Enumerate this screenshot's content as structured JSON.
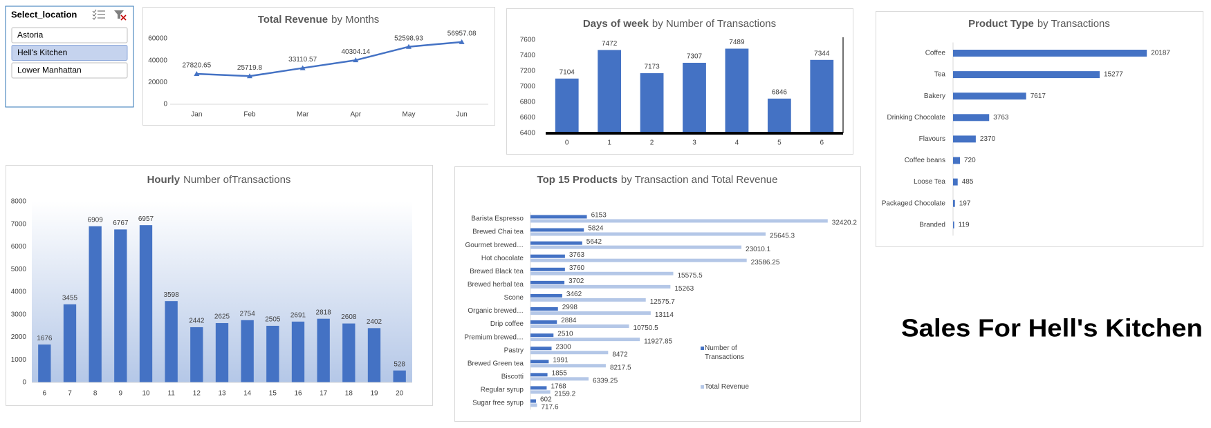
{
  "slicer": {
    "header": "Select_location",
    "items": [
      "Astoria",
      "Hell's Kitchen",
      "Lower Manhattan"
    ],
    "selected": 1
  },
  "dashboard_title": "Sales For Hell's Kitchen",
  "chart_data": [
    {
      "type": "line",
      "title": {
        "bold": "Total Revenue",
        "rest": "by Months"
      },
      "categories": [
        "Jan",
        "Feb",
        "Mar",
        "Apr",
        "May",
        "Jun"
      ],
      "values": [
        27820.65,
        25719.8,
        33110.57,
        40304.14,
        52598.93,
        56957.08
      ],
      "color": "#4472c4",
      "ylim": [
        0,
        60000
      ],
      "yticks": [
        0,
        20000,
        40000,
        60000
      ],
      "grid": false
    },
    {
      "type": "bar",
      "title": {
        "bold": "Days of week",
        "rest": "by Number of Transactions"
      },
      "categories": [
        "0",
        "1",
        "2",
        "3",
        "4",
        "5",
        "6"
      ],
      "values": [
        7104,
        7472,
        7173,
        7307,
        7489,
        6846,
        7344
      ],
      "color": "#4472c4",
      "ylim": [
        6400,
        7600
      ],
      "yticks": [
        6400,
        6600,
        6800,
        7000,
        7200,
        7400,
        7600
      ],
      "grid": false
    },
    {
      "type": "bar",
      "orientation": "horizontal",
      "title": {
        "bold": "Product Type",
        "rest": "by Transactions"
      },
      "categories": [
        "Coffee",
        "Tea",
        "Bakery",
        "Drinking Chocolate",
        "Flavours",
        "Coffee beans",
        "Loose Tea",
        "Packaged Chocolate",
        "Branded"
      ],
      "values": [
        20187,
        15277,
        7617,
        3763,
        2370,
        720,
        485,
        197,
        119
      ],
      "color": "#4472c4",
      "xlim": [
        0,
        25000
      ],
      "grid": false
    },
    {
      "type": "bar",
      "title": {
        "bold": "Hourly",
        "rest": "Number ofTransactions"
      },
      "categories": [
        "6",
        "7",
        "8",
        "9",
        "10",
        "11",
        "12",
        "13",
        "14",
        "15",
        "16",
        "17",
        "18",
        "19",
        "20"
      ],
      "values": [
        1676,
        3455,
        6909,
        6767,
        6957,
        3598,
        2442,
        2625,
        2754,
        2505,
        2691,
        2818,
        2608,
        2402,
        528
      ],
      "color": "#4472c4",
      "ylim": [
        0,
        8000
      ],
      "yticks": [
        0,
        1000,
        2000,
        3000,
        4000,
        5000,
        6000,
        7000,
        8000
      ],
      "grid": false
    },
    {
      "type": "bar",
      "orientation": "horizontal",
      "title": {
        "bold": "Top 15 Products",
        "rest": "by Transaction and Total Revenue"
      },
      "categories": [
        "Barista Espresso",
        "Brewed Chai tea",
        "Gourmet brewed…",
        "Hot chocolate",
        "Brewed Black tea",
        "Brewed herbal tea",
        "Scone",
        "Organic brewed…",
        "Drip coffee",
        "Premium brewed…",
        "Pastry",
        "Brewed Green tea",
        "Biscotti",
        "Regular syrup",
        "Sugar free syrup"
      ],
      "series": [
        {
          "name": "Number of Transactions",
          "color": "#4472c4",
          "values": [
            6153,
            5824,
            5642,
            3763,
            3760,
            3702,
            3462,
            2998,
            2884,
            2510,
            2300,
            1991,
            1855,
            1768,
            602
          ]
        },
        {
          "name": "Total Revenue",
          "color": "#b4c7e7",
          "values": [
            32420.2,
            25645.3,
            23010.1,
            23586.25,
            15575.5,
            15263,
            12575.7,
            13114,
            10750.5,
            11927.85,
            8472,
            8217.5,
            6339.25,
            2159.2,
            717.6
          ]
        }
      ],
      "xlim": [
        0,
        35000
      ],
      "legend": "right",
      "grid": false
    }
  ]
}
